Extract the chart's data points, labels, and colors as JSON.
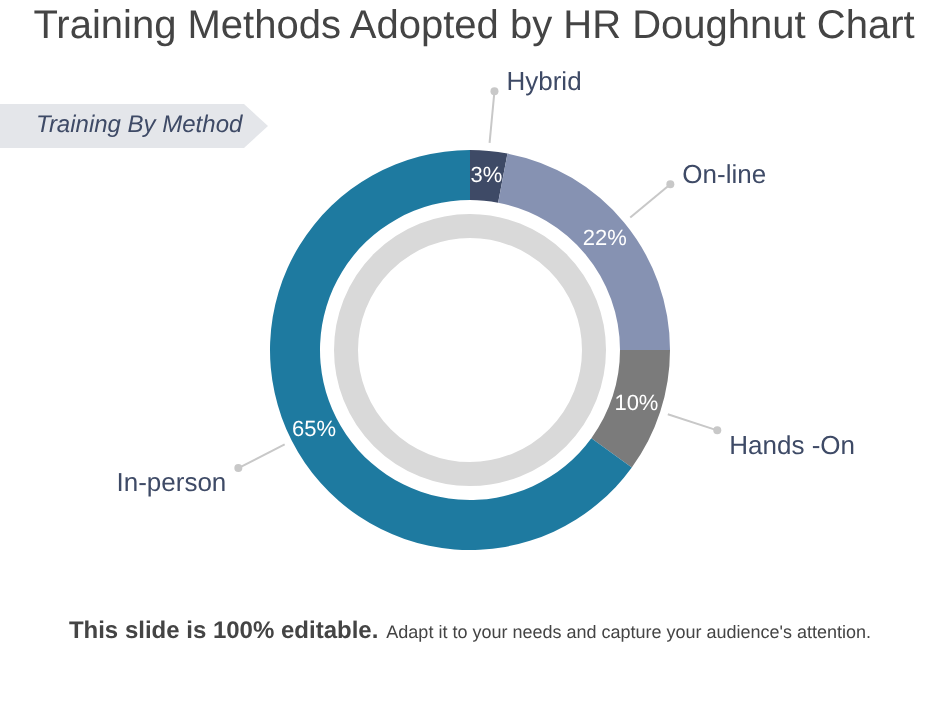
{
  "chart_data": {
    "type": "donut",
    "title": "Training Methods Adopted by HR Doughnut Chart",
    "subtitle": "Training By Method",
    "categories": [
      "Hybrid",
      "On-line",
      "Hands -On",
      "In-person"
    ],
    "values": [
      3,
      22,
      10,
      65
    ],
    "colors": [
      "#3e4a66",
      "#8692b2",
      "#7b7b7b",
      "#1e7aa0"
    ],
    "value_labels": [
      "3%",
      "22%",
      "10%",
      "65%"
    ],
    "legend": false,
    "annotations": [
      "This slide is 100% editable.",
      "Adapt it to your needs and capture your audience's attention."
    ]
  }
}
